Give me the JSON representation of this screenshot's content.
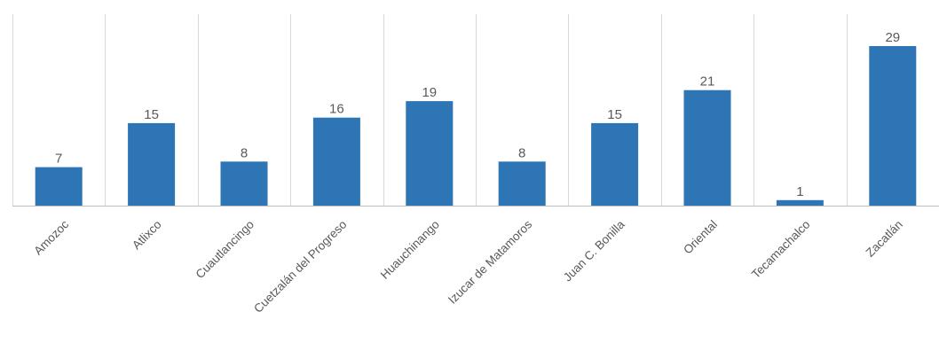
{
  "chart_data": {
    "type": "bar",
    "categories": [
      "Amozoc",
      "Atlixco",
      "Cuautlancingo",
      "Cuetzalán del Progreso",
      "Huauchinango",
      "Izucar de Matamoros",
      "Juan C. Bonilla",
      "Oriental",
      "Tecamachalco",
      "Zacatlán"
    ],
    "values": [
      7,
      15,
      8,
      16,
      19,
      8,
      15,
      21,
      1,
      29
    ],
    "data_labels": [
      "7",
      "15",
      "8",
      "16",
      "19",
      "8",
      "15",
      "21",
      "1",
      "29"
    ],
    "ylim": [
      0,
      35
    ],
    "grid": "vertical",
    "legend": "none",
    "colors": {
      "bar": "#2E75B6",
      "grid": "#D9D9D9",
      "axis": "#BFBFBF",
      "text": "#595959"
    }
  }
}
